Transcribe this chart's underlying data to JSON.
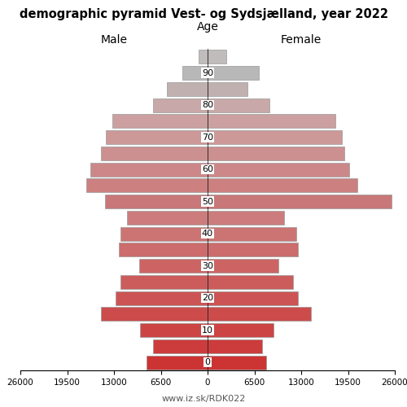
{
  "title": "demographic pyramid Vest- og Sydsjælland, year 2022",
  "male_label": "Male",
  "female_label": "Female",
  "age_label": "Age",
  "url_label": "www.iz.sk/RDK022",
  "age_labels": [
    "0",
    "",
    "10",
    "",
    "20",
    "",
    "30",
    "",
    "40",
    "",
    "50",
    "",
    "60",
    "",
    "70",
    "",
    "80",
    "",
    "90",
    ""
  ],
  "age_tick_labels": [
    "0",
    "10",
    "20",
    "30",
    "40",
    "50",
    "60",
    "70",
    "80",
    "90"
  ],
  "age_tick_positions": [
    0,
    2,
    4,
    6,
    8,
    10,
    12,
    14,
    16,
    18
  ],
  "male_values": [
    8500,
    7600,
    9400,
    14800,
    12800,
    12100,
    9500,
    12300,
    12100,
    11200,
    14200,
    16800,
    16300,
    14800,
    14100,
    13200,
    7600,
    5600,
    3500,
    1200
  ],
  "female_values": [
    8100,
    7600,
    9200,
    14300,
    12500,
    11900,
    9800,
    12600,
    12300,
    10600,
    25500,
    20800,
    19700,
    19000,
    18700,
    17700,
    8600,
    5500,
    7100,
    2600
  ],
  "xlim": 26000,
  "xticks": [
    26000,
    19500,
    13000,
    6500,
    0,
    6500,
    13000,
    19500,
    26000
  ],
  "male_xticks": [
    26000,
    19500,
    13000,
    6500,
    0
  ],
  "female_xticks": [
    0,
    6500,
    13000,
    19500,
    26000
  ],
  "colors": [
    "#cc3333",
    "#cc3c3c",
    "#cc4444",
    "#cc4c4c",
    "#cc5454",
    "#cc5c5c",
    "#cc6464",
    "#cc6c6c",
    "#cc7474",
    "#cc7c7c",
    "#c87878",
    "#cc8080",
    "#cc8888",
    "#cc9090",
    "#cc9898",
    "#cca0a0",
    "#c8a8a8",
    "#c0b0b0",
    "#b8b8b8",
    "#c0bcbc"
  ],
  "bar_edge_color": "#999999",
  "bar_linewidth": 0.5,
  "background_color": "#ffffff",
  "figsize": [
    5.0,
    5.0
  ],
  "dpi": 100
}
